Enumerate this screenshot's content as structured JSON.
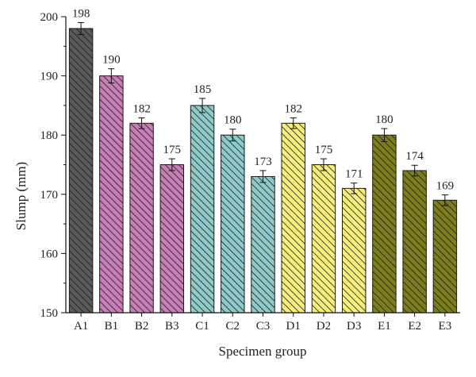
{
  "chart_data": {
    "type": "bar",
    "title": "",
    "xlabel": "Specimen group",
    "ylabel": "Slump (mm)",
    "ylim": [
      150,
      200
    ],
    "yticks": [
      150,
      160,
      170,
      180,
      190,
      200
    ],
    "categories": [
      "A1",
      "B1",
      "B2",
      "B3",
      "C1",
      "C2",
      "C3",
      "D1",
      "D2",
      "D3",
      "E1",
      "E2",
      "E3"
    ],
    "values": [
      198,
      190,
      182,
      175,
      185,
      180,
      173,
      182,
      175,
      171,
      180,
      174,
      169
    ],
    "errors": [
      1.0,
      1.2,
      0.9,
      1.0,
      1.2,
      1.0,
      1.0,
      0.9,
      1.0,
      0.9,
      1.1,
      0.9,
      0.9
    ],
    "value_labels": [
      "198",
      "190",
      "182",
      "175",
      "185",
      "180",
      "173",
      "182",
      "175",
      "171",
      "180",
      "174",
      "169"
    ],
    "grid": false,
    "bar_pattern": "diagonal-hatch",
    "group_colors": {
      "A": "#5a5a5a",
      "B": "#c77fb6",
      "C": "#8fcaca",
      "D": "#f7ee7e",
      "E": "#7e7e1e"
    }
  }
}
